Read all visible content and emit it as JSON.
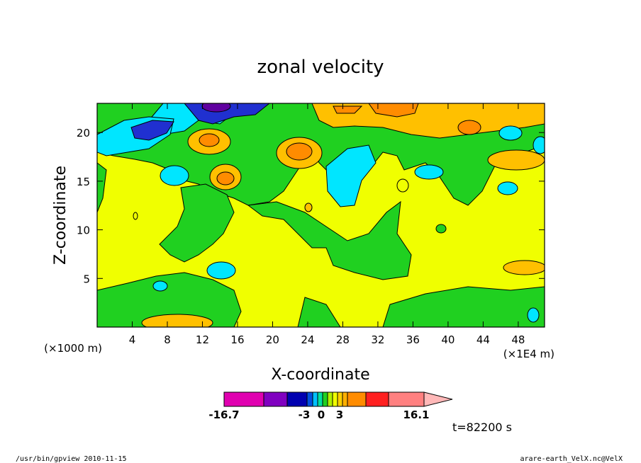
{
  "chart_data": {
    "type": "heatmap",
    "title": "zonal velocity",
    "xlabel": "X-coordinate",
    "ylabel": "Z-coordinate",
    "x_unit_note": "(×1E4 m)",
    "y_unit_note": "(×1000 m)",
    "xlim": [
      0,
      51
    ],
    "ylim": [
      0,
      23
    ],
    "x_ticks": [
      4,
      8,
      12,
      16,
      20,
      24,
      28,
      32,
      36,
      40,
      44,
      48
    ],
    "y_ticks": [
      5,
      10,
      15,
      20
    ],
    "colorbar": {
      "min_label": "-16.7",
      "max_label": "16.1",
      "tick_labels": [
        "-16.7",
        "-3",
        "0",
        "3",
        "16.1"
      ],
      "colors": [
        "#e000b0",
        "#8000c0",
        "#0000b0",
        "#0050e0",
        "#00c0ff",
        "#00e0a0",
        "#20d020",
        "#b0f000",
        "#f0ff00",
        "#ffd000",
        "#ffb000",
        "#ff8c00",
        "#ff2020",
        "#ff8080",
        "#ffb8b8"
      ]
    },
    "regions": [
      {
        "level": "positive weak",
        "color": "#f0ff00",
        "desc": "background 0 to 3"
      },
      {
        "level": "near zero",
        "color": "#20d020"
      },
      {
        "level": "negative",
        "color": "#00e6ff"
      },
      {
        "level": "strong negative",
        "color": "#2030d0"
      },
      {
        "level": "strong negative core",
        "color": "#6000a0"
      },
      {
        "level": "positive",
        "color": "#ffc000"
      },
      {
        "level": "strong positive",
        "color": "#ff8c00"
      }
    ],
    "time_label": "t=82200 s",
    "footer_left": "/usr/bin/gpview  2010-11-15",
    "footer_right": "arare-earth_VelX.nc@VelX"
  }
}
